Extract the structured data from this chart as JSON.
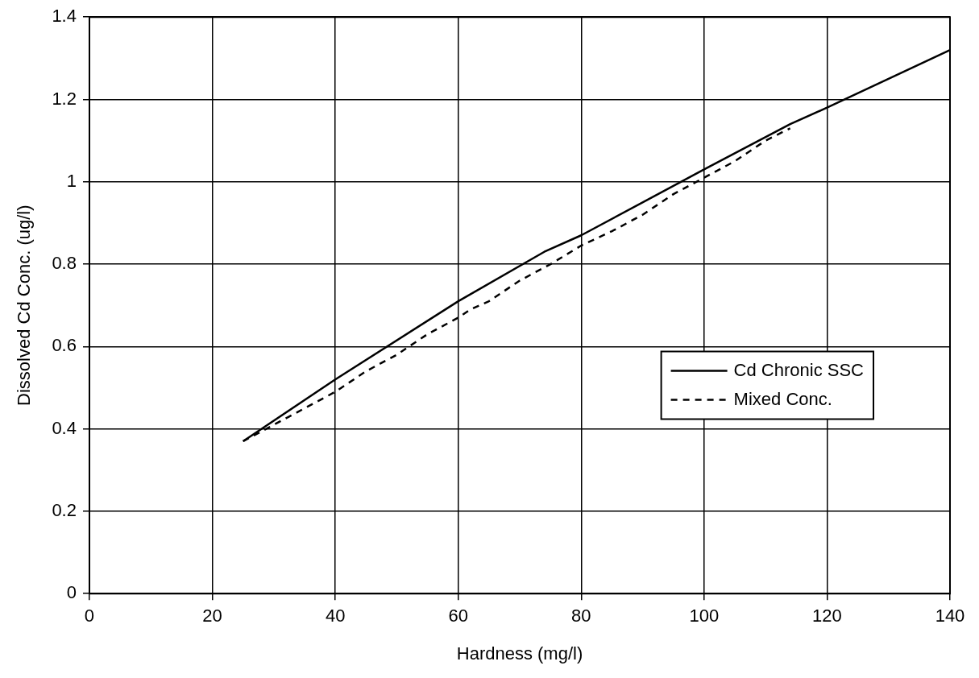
{
  "chart_data": {
    "type": "line",
    "xlabel": "Hardness (mg/l)",
    "ylabel": "Dissolved Cd Conc. (ug/l)",
    "xlim": [
      0,
      140
    ],
    "xticks": [
      0,
      20,
      40,
      60,
      80,
      100,
      120,
      140
    ],
    "ylim": [
      0,
      1.4
    ],
    "yticks": [
      0,
      0.2,
      0.4,
      0.6,
      0.8,
      1,
      1.2,
      1.4
    ],
    "grid": true,
    "legend": "bottom right",
    "marker": "none",
    "series": [
      {
        "name": "Cd Chronic SSC",
        "color": "#000000",
        "line_style": "solid",
        "x": [
          25,
          40,
          60,
          74,
          80,
          100,
          114,
          120,
          140
        ],
        "values": [
          0.37,
          0.52,
          0.71,
          0.83,
          0.87,
          1.03,
          1.14,
          1.18,
          1.32
        ]
      },
      {
        "name": "Mixed Conc.",
        "color": "#000000",
        "line_style": "dashed",
        "x": [
          25,
          30,
          35,
          40,
          42,
          45,
          50,
          53,
          55,
          60,
          62,
          65,
          70,
          75,
          80,
          85,
          90,
          95,
          100,
          105,
          107,
          110,
          114
        ],
        "values": [
          0.37,
          0.41,
          0.45,
          0.49,
          0.51,
          0.54,
          0.58,
          0.61,
          0.63,
          0.67,
          0.69,
          0.71,
          0.76,
          0.8,
          0.845,
          0.88,
          0.92,
          0.97,
          1.01,
          1.05,
          1.07,
          1.1,
          1.13
        ]
      }
    ]
  }
}
